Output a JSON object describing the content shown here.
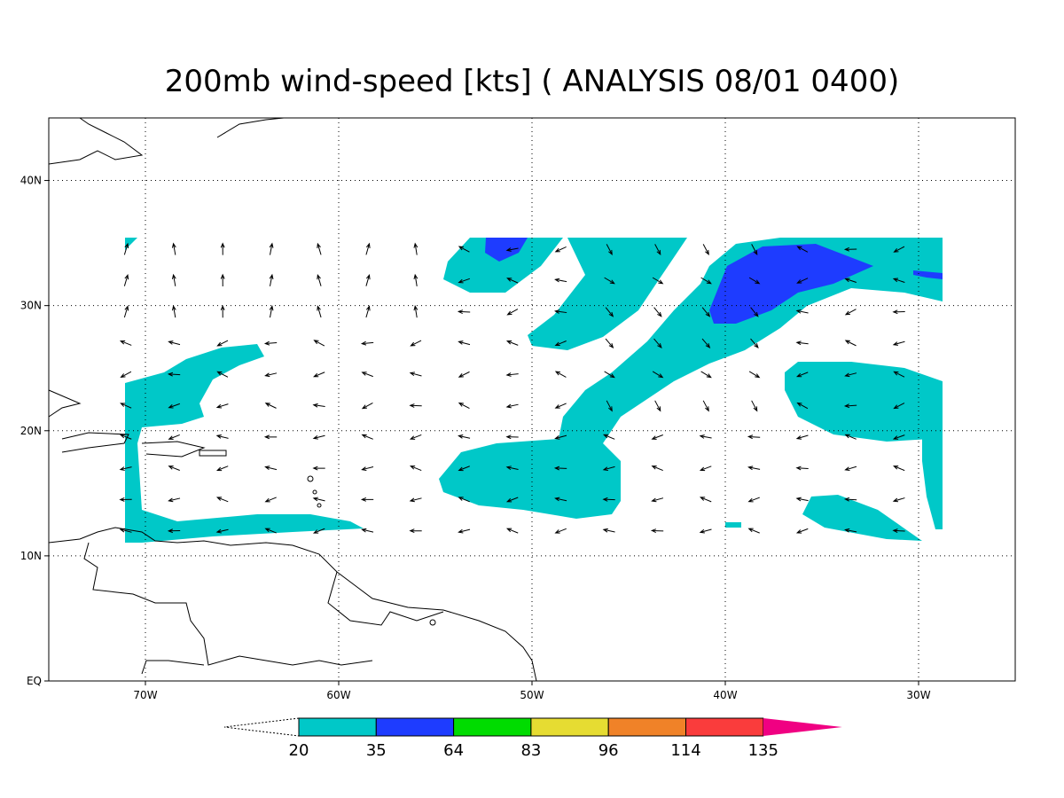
{
  "map": {
    "title": "200mb wind-speed [kts] ( ANALYSIS 08/01 0400)",
    "xlim": [
      -75,
      -25
    ],
    "ylim": [
      0,
      45
    ],
    "xticks": [
      {
        "value": -70,
        "label": "70W"
      },
      {
        "value": -60,
        "label": "60W"
      },
      {
        "value": -50,
        "label": "50W"
      },
      {
        "value": -40,
        "label": "40W"
      },
      {
        "value": -30,
        "label": "30W"
      }
    ],
    "yticks": [
      {
        "value": 0,
        "label": "EQ"
      },
      {
        "value": 10,
        "label": "10N"
      },
      {
        "value": 20,
        "label": "20N"
      },
      {
        "value": 30,
        "label": "30N"
      },
      {
        "value": 40,
        "label": "40N"
      }
    ],
    "colorbar": {
      "levels": [
        20,
        35,
        64,
        83,
        96,
        114,
        135
      ],
      "colors": [
        "#00c8c8",
        "#1e3cff",
        "#00dc00",
        "#e6dc32",
        "#f08228",
        "#fa3c3c",
        "#f00082"
      ]
    }
  }
}
